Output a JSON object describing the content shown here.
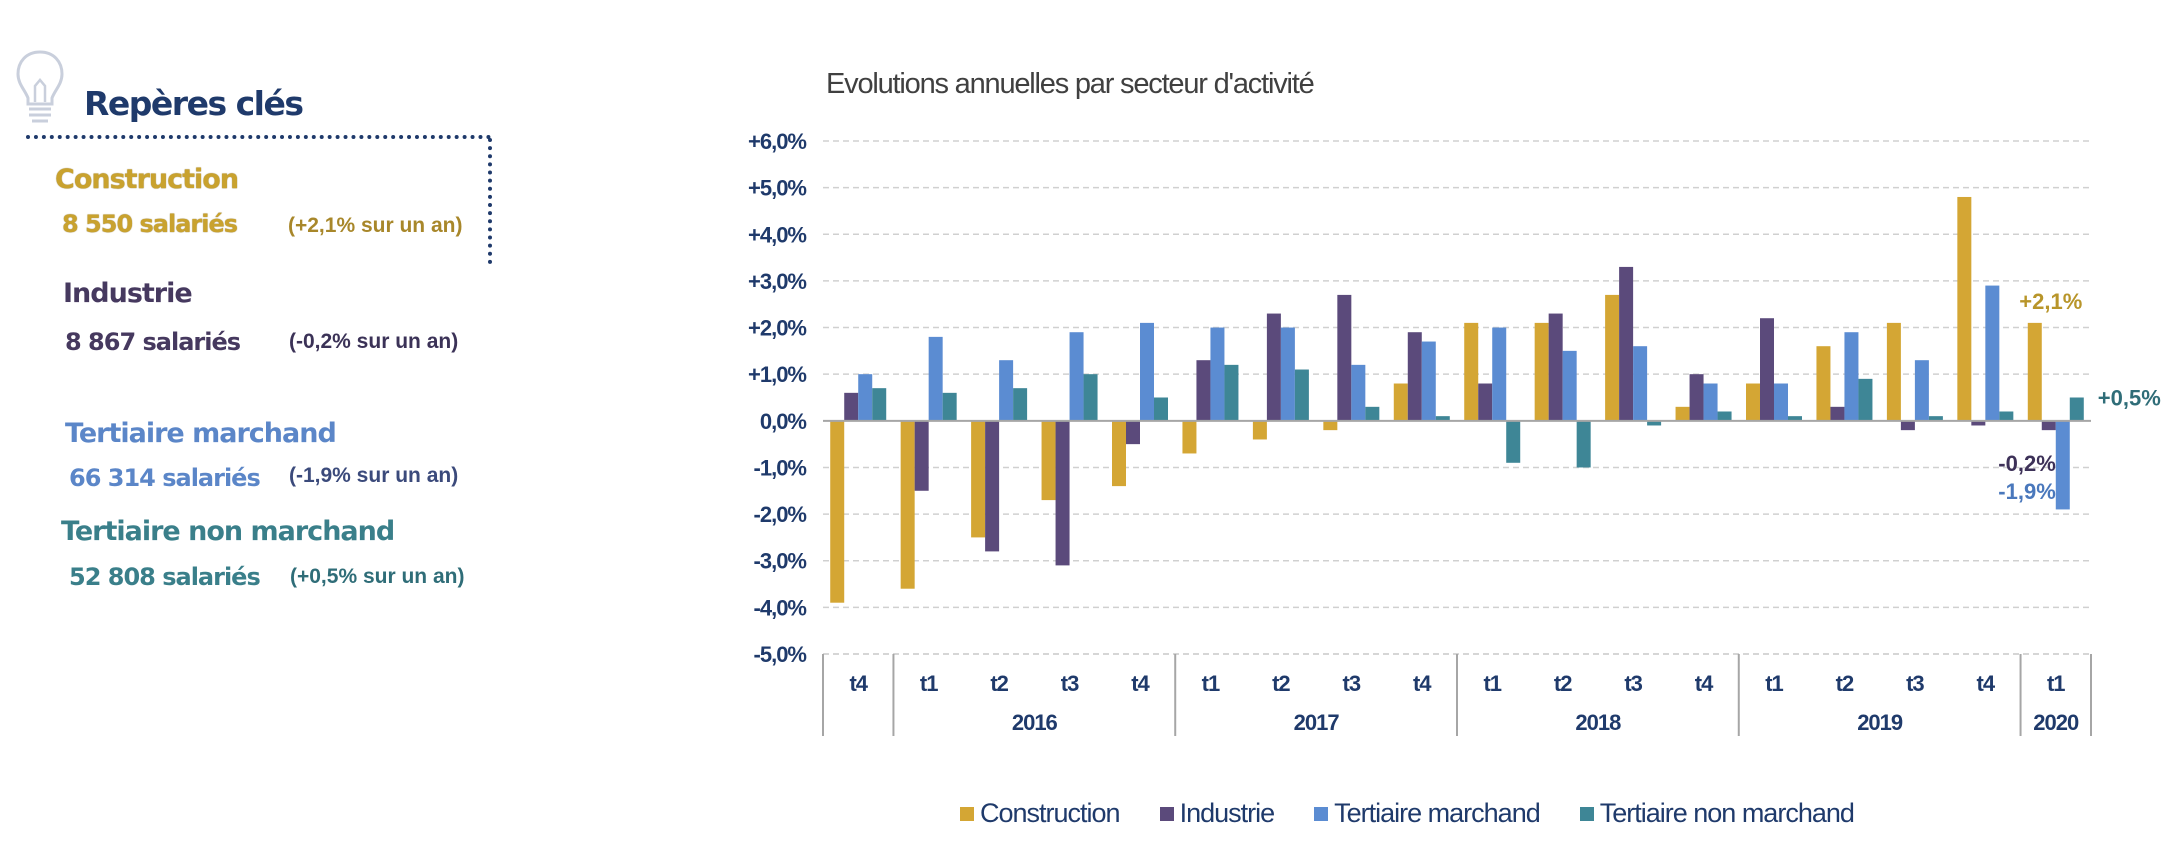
{
  "panel": {
    "title": "Repères clés",
    "icon": "lightbulb-icon",
    "sectors": [
      {
        "name": "Construction",
        "count": "8 550 salariés",
        "variation": "(+2,1% sur un an)",
        "color": "#C9A22E"
      },
      {
        "name": "Industrie",
        "count": "8 867 salariés",
        "variation": "(-0,2% sur un an)",
        "color": "#46395F"
      },
      {
        "name": "Tertiaire marchand",
        "count": "66 314 salariés",
        "variation": "(-1,9% sur un an)",
        "color": "#5B86C8"
      },
      {
        "name": "Tertiaire non marchand",
        "count": "52 808 salariés",
        "variation": "(+0,5% sur un an)",
        "color": "#3A7F8A"
      }
    ]
  },
  "chart_data": {
    "type": "bar",
    "title": "Evolutions annuelles par secteur d'activité",
    "xlabel": "",
    "ylabel": "",
    "ylim": [
      -5,
      6
    ],
    "yticks": [
      6,
      5,
      4,
      3,
      2,
      1,
      0,
      -1,
      -2,
      -3,
      -4,
      -5
    ],
    "ytick_labels": [
      "+6,0%",
      "+5,0%",
      "+4,0%",
      "+3,0%",
      "+2,0%",
      "+1,0%",
      "0,0%",
      "-1,0%",
      "-2,0%",
      "-3,0%",
      "-4,0%",
      "-5,0%"
    ],
    "grid": true,
    "legend_position": "bottom",
    "categories": [
      "t4",
      "t1",
      "t2",
      "t3",
      "t4",
      "t1",
      "t2",
      "t3",
      "t4",
      "t1",
      "t2",
      "t3",
      "t4",
      "t1",
      "t2",
      "t3",
      "t4",
      "t1"
    ],
    "year_groups": [
      {
        "label": "",
        "span": 1
      },
      {
        "label": "2016",
        "span": 4
      },
      {
        "label": "2017",
        "span": 4
      },
      {
        "label": "2018",
        "span": 4
      },
      {
        "label": "2019",
        "span": 4
      },
      {
        "label": "2020",
        "span": 1
      }
    ],
    "series": [
      {
        "name": "Construction",
        "color": "#D4A634",
        "values": [
          -3.9,
          -3.6,
          -2.5,
          -1.7,
          -1.4,
          -0.7,
          -0.4,
          -0.2,
          0.8,
          2.1,
          2.1,
          2.7,
          0.3,
          0.8,
          1.6,
          2.1,
          4.8,
          2.1
        ]
      },
      {
        "name": "Industrie",
        "color": "#5B4A7B",
        "values": [
          0.6,
          -1.5,
          -2.8,
          -3.1,
          -0.5,
          1.3,
          2.3,
          2.7,
          1.9,
          0.8,
          2.3,
          3.3,
          1.0,
          2.2,
          0.3,
          -0.2,
          -0.1,
          -0.2
        ]
      },
      {
        "name": "Tertiaire marchand",
        "color": "#5B8CD2",
        "values": [
          1.0,
          1.8,
          1.3,
          1.9,
          2.1,
          2.0,
          2.0,
          1.2,
          1.7,
          2.0,
          1.5,
          1.6,
          0.8,
          0.8,
          1.9,
          1.3,
          2.9,
          -1.9
        ]
      },
      {
        "name": "Tertiaire non marchand",
        "color": "#3E8696",
        "values": [
          0.7,
          0.6,
          0.7,
          1.0,
          0.5,
          1.2,
          1.1,
          0.3,
          0.1,
          -0.9,
          -1.0,
          -0.1,
          0.2,
          0.1,
          0.9,
          0.1,
          0.2,
          0.5
        ]
      }
    ],
    "annotations": [
      {
        "text": "+2,1%",
        "series": "Construction",
        "category_index": 17,
        "color": "#B8952A"
      },
      {
        "text": "+0,5%",
        "series": "Tertiaire non marchand",
        "category_index": 17,
        "color": "#2F6D78"
      },
      {
        "text": "-0,2%",
        "series": "Industrie",
        "category_index": 17,
        "color": "#3D3158"
      },
      {
        "text": "-1,9%",
        "series": "Tertiaire marchand",
        "category_index": 17,
        "color": "#4A78BC"
      }
    ],
    "axis_label_color": "#1F3A6B"
  }
}
